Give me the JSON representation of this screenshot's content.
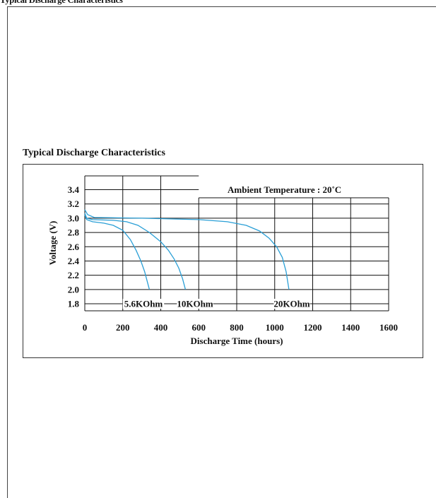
{
  "page": {
    "top_title": "Typical Discharge Characteristics"
  },
  "chart_data": {
    "type": "line",
    "title": "Typical Discharge Characteristics",
    "annotation": "Ambient Temperature : 20˚C",
    "xlabel": "Discharge Time (hours)",
    "ylabel": "Voltage (V)",
    "xlim": [
      0,
      1600
    ],
    "ylim": [
      1.7,
      3.5
    ],
    "x_ticks": [
      0,
      200,
      400,
      600,
      800,
      1000,
      1200,
      1400,
      1600
    ],
    "y_ticks": [
      1.8,
      2.0,
      2.2,
      2.4,
      2.6,
      2.8,
      3.0,
      3.2,
      3.4
    ],
    "grid": true,
    "series_color": "#2a9fd6",
    "series": [
      {
        "name": "5.6KOhm",
        "x": [
          0,
          10,
          40,
          100,
          150,
          200,
          240,
          270,
          295,
          315,
          330,
          340
        ],
        "y": [
          3.05,
          2.98,
          2.95,
          2.93,
          2.9,
          2.83,
          2.7,
          2.55,
          2.4,
          2.25,
          2.1,
          2.0
        ]
      },
      {
        "name": "10KOhm",
        "x": [
          0,
          10,
          40,
          150,
          220,
          280,
          340,
          400,
          440,
          470,
          495,
          515,
          530
        ],
        "y": [
          3.07,
          3.0,
          2.98,
          2.97,
          2.95,
          2.9,
          2.8,
          2.67,
          2.55,
          2.43,
          2.3,
          2.15,
          2.0
        ]
      },
      {
        "name": "20KOhm",
        "x": [
          0,
          15,
          50,
          300,
          600,
          750,
          850,
          920,
          970,
          1010,
          1040,
          1060,
          1075
        ],
        "y": [
          3.12,
          3.05,
          3.01,
          3.0,
          2.98,
          2.95,
          2.9,
          2.82,
          2.72,
          2.6,
          2.45,
          2.25,
          2.0
        ]
      }
    ]
  }
}
